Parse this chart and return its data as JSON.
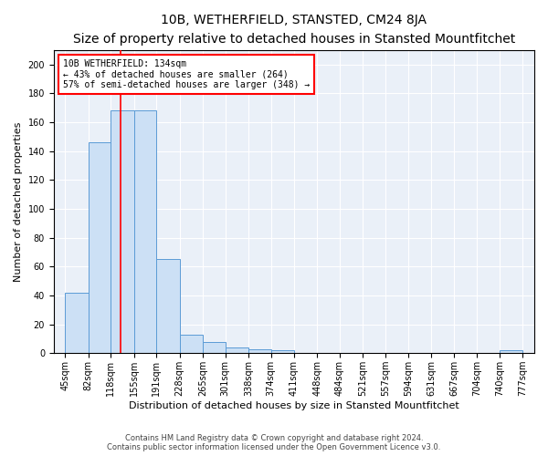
{
  "title1": "10B, WETHERFIELD, STANSTED, CM24 8JA",
  "title2": "Size of property relative to detached houses in Stansted Mountfitchet",
  "xlabel": "Distribution of detached houses by size in Stansted Mountfitchet",
  "ylabel": "Number of detached properties",
  "bar_edges": [
    45,
    82,
    118,
    155,
    191,
    228,
    265,
    301,
    338,
    374,
    411,
    448,
    484,
    521,
    557,
    594,
    631,
    667,
    704,
    740,
    777
  ],
  "bar_heights": [
    42,
    146,
    168,
    168,
    65,
    13,
    8,
    4,
    3,
    2,
    0,
    0,
    0,
    0,
    0,
    0,
    0,
    0,
    0,
    2
  ],
  "bar_color": "#cce0f5",
  "bar_edge_color": "#5b9bd5",
  "red_line_x": 134,
  "annotation_line1": "10B WETHERFIELD: 134sqm",
  "annotation_line2": "← 43% of detached houses are smaller (264)",
  "annotation_line3": "57% of semi-detached houses are larger (348) →",
  "annotation_box_color": "white",
  "annotation_box_edge": "red",
  "ylim": [
    0,
    210
  ],
  "yticks": [
    0,
    20,
    40,
    60,
    80,
    100,
    120,
    140,
    160,
    180,
    200
  ],
  "bg_color": "#eaf0f8",
  "footer1": "Contains HM Land Registry data © Crown copyright and database right 2024.",
  "footer2": "Contains public sector information licensed under the Open Government Licence v3.0.",
  "title1_fontsize": 10,
  "title2_fontsize": 8.5,
  "tick_fontsize": 7,
  "xlabel_fontsize": 8,
  "ylabel_fontsize": 8,
  "footer_fontsize": 6,
  "annotation_fontsize": 7
}
